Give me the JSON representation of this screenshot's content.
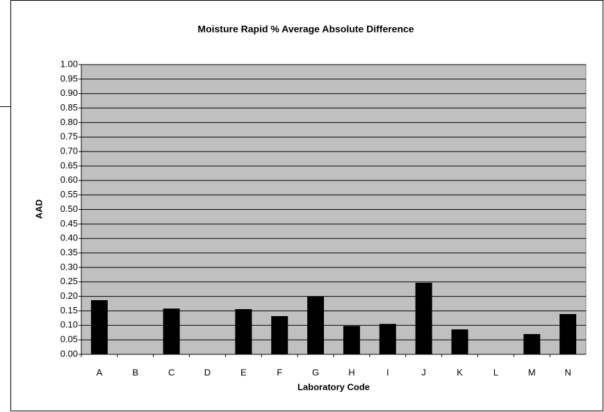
{
  "chart_data": {
    "type": "bar",
    "title": "Moisture Rapid % Average Absolute Difference",
    "x_label": "Laboratory Code",
    "y_label": "AAD",
    "categories": [
      "A",
      "B",
      "C",
      "D",
      "E",
      "F",
      "G",
      "H",
      "I",
      "J",
      "K",
      "L",
      "M",
      "N"
    ],
    "values": [
      0.187,
      null,
      0.158,
      null,
      0.156,
      0.132,
      0.2,
      0.098,
      0.105,
      0.247,
      0.086,
      null,
      0.07,
      0.139
    ],
    "color": "#000000",
    "plot_background": "#c0c0c0",
    "ylim": [
      0,
      1
    ],
    "yticks": [
      {
        "value": 0,
        "label": "0.00"
      },
      {
        "value": 0.05,
        "label": "0.05"
      },
      {
        "value": 0.1,
        "label": "0.10"
      },
      {
        "value": 0.15,
        "label": "0.15"
      },
      {
        "value": 0.2,
        "label": "0.20"
      },
      {
        "value": 0.25,
        "label": "0.25"
      },
      {
        "value": 0.3,
        "label": "0.30"
      },
      {
        "value": 0.35,
        "label": "0.35"
      },
      {
        "value": 0.4,
        "label": "0.40"
      },
      {
        "value": 0.45,
        "label": "0.45"
      },
      {
        "value": 0.5,
        "label": "0.50"
      },
      {
        "value": 0.55,
        "label": "0.55"
      },
      {
        "value": 0.6,
        "label": "0.60"
      },
      {
        "value": 0.65,
        "label": "0.65"
      },
      {
        "value": 0.7,
        "label": "0.70"
      },
      {
        "value": 0.75,
        "label": "0.75"
      },
      {
        "value": 0.8,
        "label": "0.80"
      },
      {
        "value": 0.85,
        "label": "0.85"
      },
      {
        "value": 0.9,
        "label": "0.90"
      },
      {
        "value": 0.95,
        "label": "0.95"
      },
      {
        "value": 1,
        "label": "1.00"
      }
    ],
    "grid": true
  }
}
